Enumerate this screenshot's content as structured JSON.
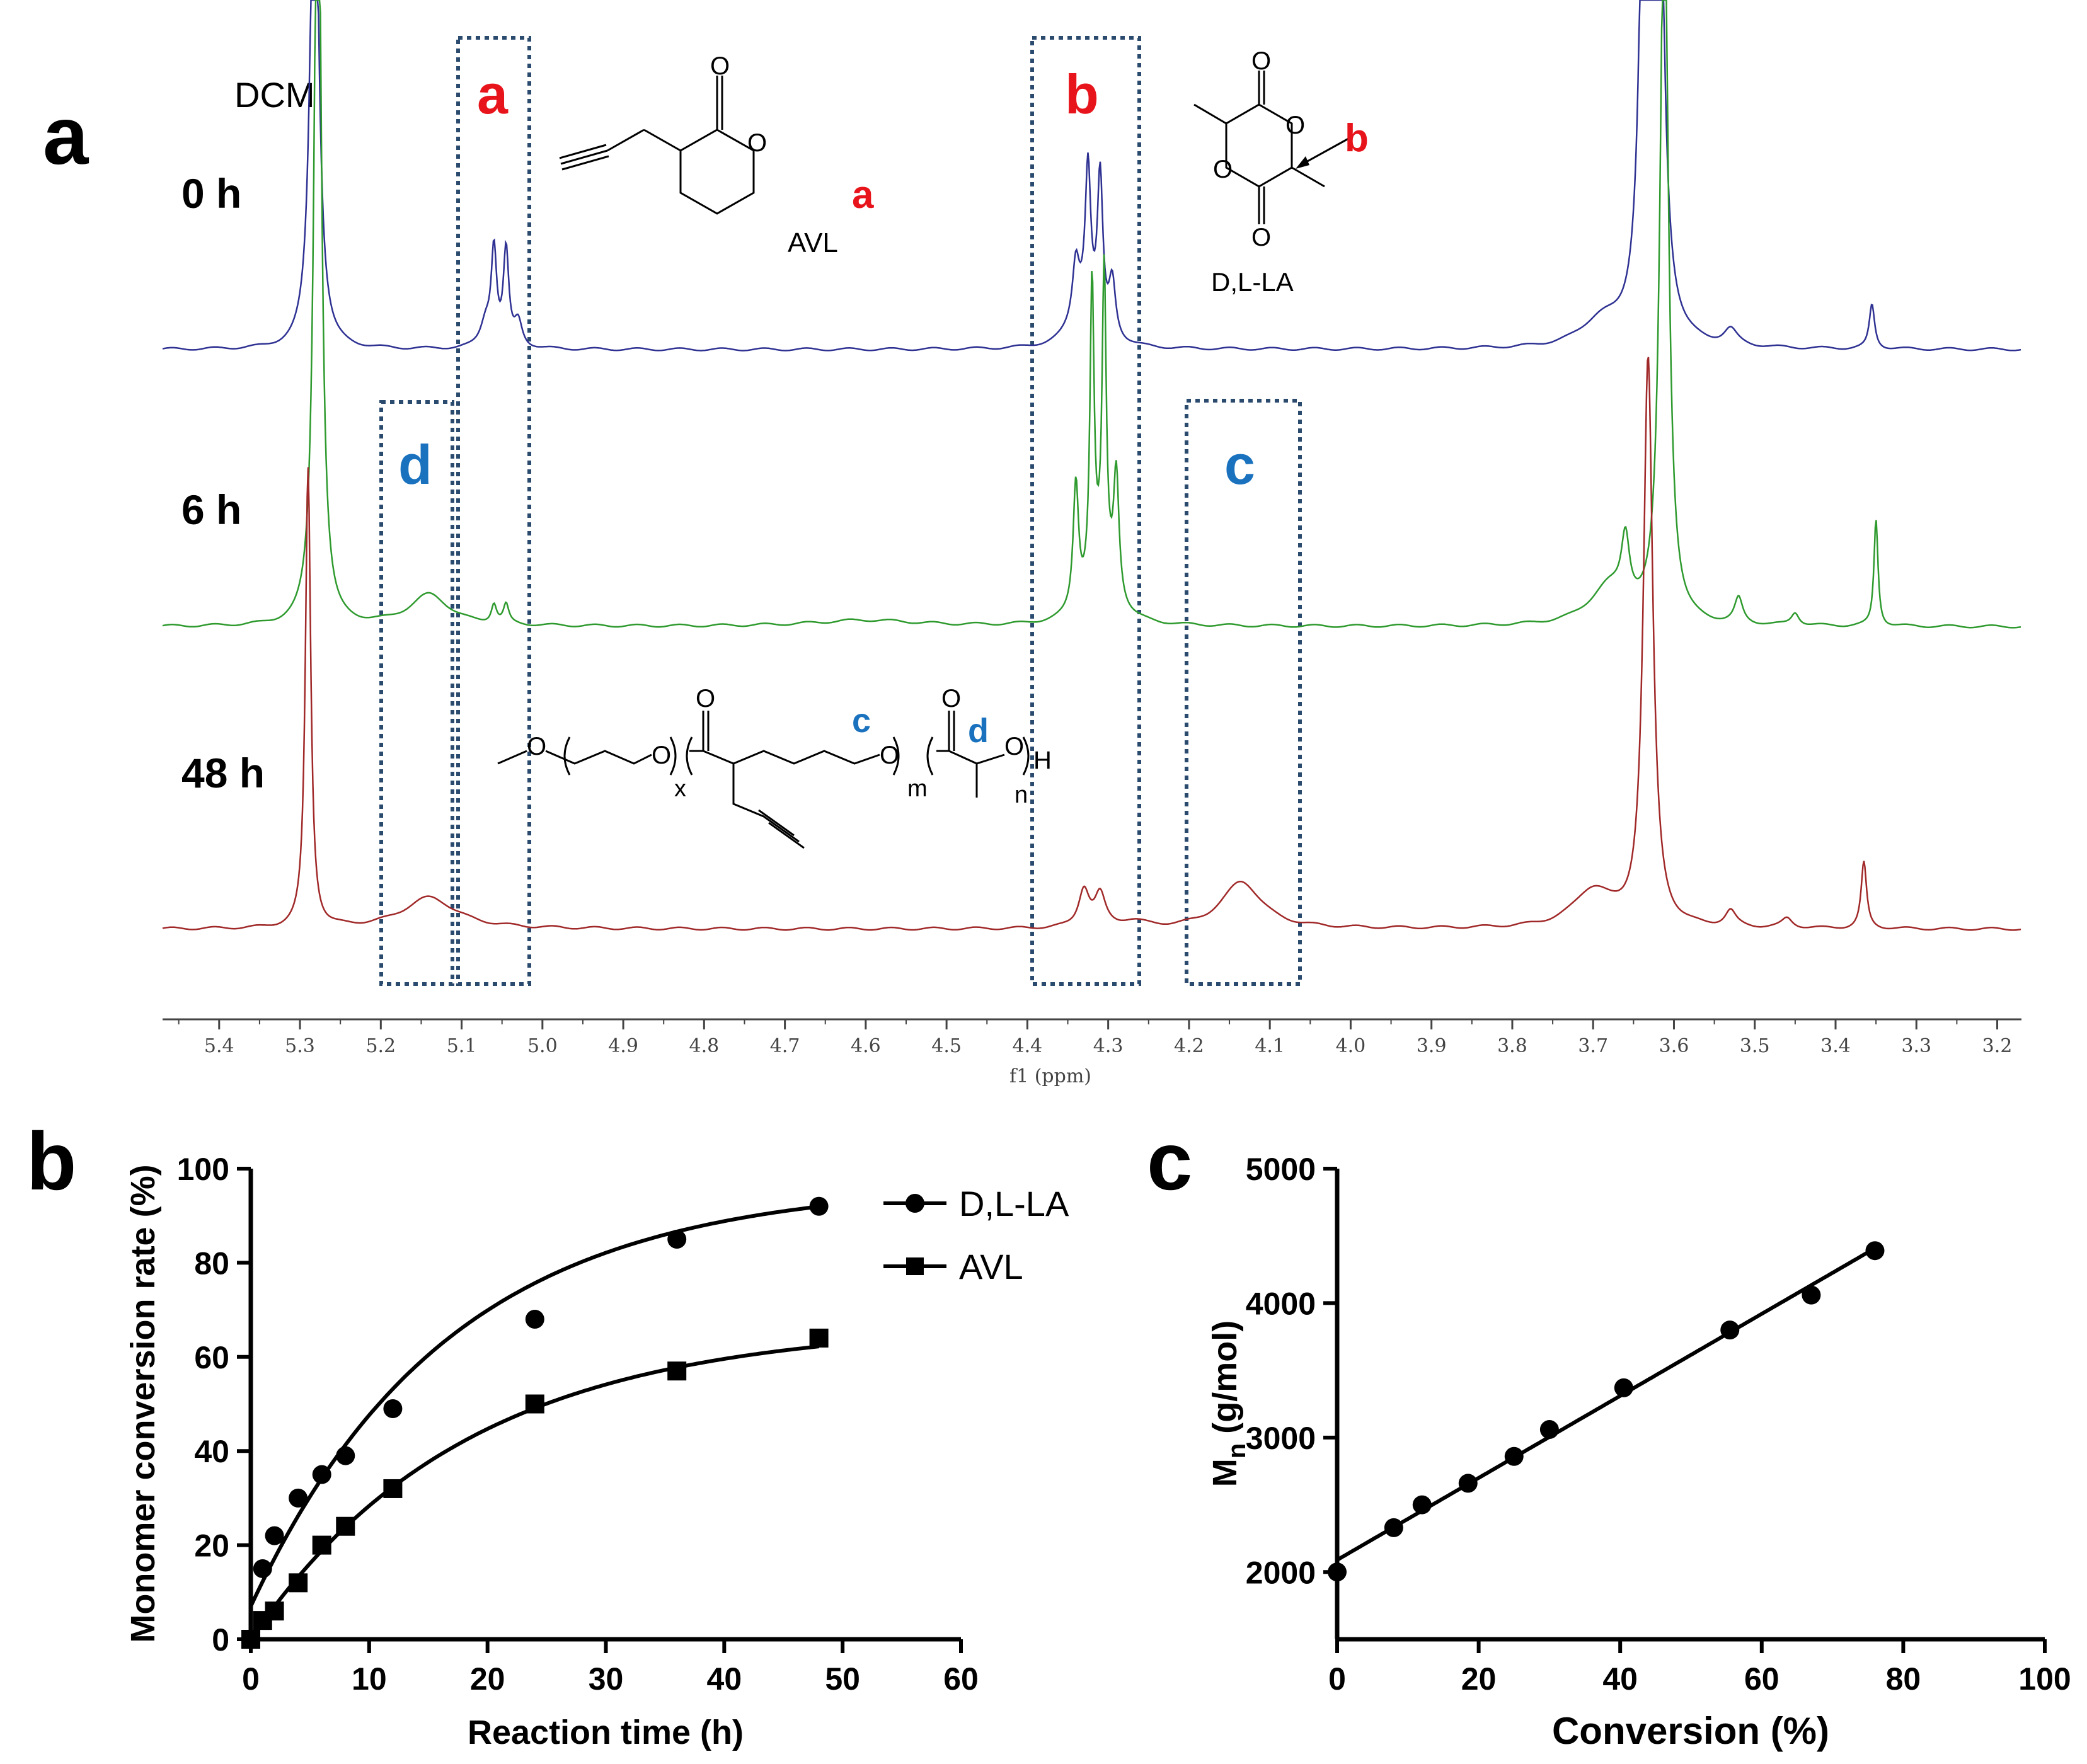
{
  "panel_a": {
    "letter": "a",
    "time_labels": [
      "0 h",
      "6 h",
      "48 h"
    ],
    "solvent_label": "DCM",
    "peak_labels": {
      "a": "a",
      "b": "b",
      "c": "c",
      "d": "d"
    },
    "structures": {
      "avl_name": "AVL",
      "avl_site": "a",
      "la_name": "D,L-LA",
      "la_site": "b",
      "la_O": "O",
      "polymer_site_c": "c",
      "polymer_site_d": "d",
      "O": "O",
      "H": "H",
      "x": "x",
      "m": "m",
      "n": "n"
    },
    "colors": {
      "spectrum_0h": "#2e3192",
      "spectrum_6h": "#2e9a2e",
      "spectrum_48h": "#a02828",
      "box": "#2a4a6e",
      "red_label": "#e8141c",
      "blue_label": "#1a72be"
    },
    "x_axis": {
      "label": "f1 (ppm)",
      "range": [
        5.47,
        3.17
      ],
      "ticks": [
        "5.4",
        "5.3",
        "5.2",
        "5.1",
        "5.0",
        "4.9",
        "4.8",
        "4.7",
        "4.6",
        "4.5",
        "4.4",
        "4.3",
        "4.2",
        "4.1",
        "4.0",
        "3.9",
        "3.8",
        "3.7",
        "3.6",
        "3.5",
        "3.4",
        "3.3",
        "3.2"
      ]
    }
  },
  "chart_data": [
    {
      "type": "scatter",
      "panel": "b",
      "xlabel": "Reaction time (h)",
      "ylabel": "Monomer conversion rate (%)",
      "xlim": [
        0,
        60
      ],
      "ylim": [
        0,
        100
      ],
      "xticks": [
        0,
        10,
        20,
        30,
        40,
        50,
        60
      ],
      "yticks": [
        0,
        20,
        40,
        60,
        80,
        100
      ],
      "legend_position": "top-right",
      "series": [
        {
          "name": "D,L-LA",
          "marker": "circle",
          "x": [
            0,
            1,
            2,
            4,
            6,
            8,
            12,
            24,
            36,
            48
          ],
          "values": [
            0,
            15,
            22,
            30,
            35,
            39,
            49,
            68,
            85,
            92
          ],
          "fit": {
            "model": "exponential",
            "a": 97,
            "k": 0.06,
            "c": 7
          }
        },
        {
          "name": "AVL",
          "marker": "square",
          "x": [
            0,
            1,
            2,
            4,
            6,
            8,
            12,
            24,
            36,
            48
          ],
          "values": [
            0,
            4,
            6,
            12,
            20,
            24,
            32,
            50,
            57,
            64
          ],
          "fit": {
            "model": "exponential",
            "a": 67,
            "k": 0.055,
            "c": 0
          }
        }
      ]
    },
    {
      "type": "scatter",
      "panel": "c",
      "xlabel": "Conversion (%)",
      "ylabel": "Mn (g/mol)",
      "ylabel_main": "M",
      "ylabel_sub": "n",
      "ylabel_rest": " (g/mol)",
      "xlim": [
        0,
        100
      ],
      "ylim": [
        1500,
        5000
      ],
      "xticks": [
        0,
        20,
        40,
        60,
        80,
        100
      ],
      "yticks": [
        2000,
        3000,
        4000,
        5000
      ],
      "series": [
        {
          "name": "Mn",
          "marker": "circle",
          "x": [
            0,
            8,
            12,
            18.5,
            25,
            30,
            40.5,
            55.5,
            67,
            76
          ],
          "values": [
            2000,
            2330,
            2500,
            2660,
            2860,
            3060,
            3370,
            3800,
            4060,
            4390
          ],
          "fit": {
            "model": "linear",
            "slope": 30.5,
            "intercept": 2090
          }
        }
      ]
    }
  ]
}
